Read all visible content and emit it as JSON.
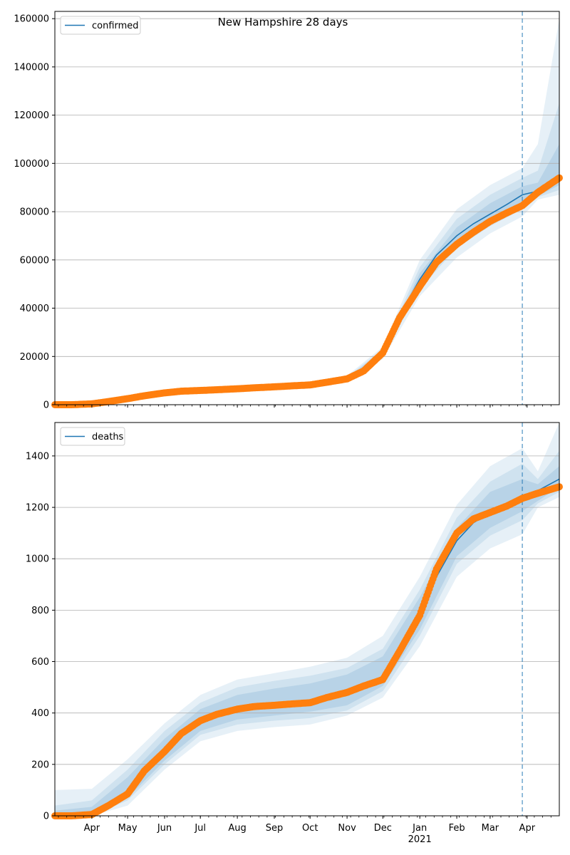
{
  "figure": {
    "title": "New Hampshire 28 days",
    "year_label": "2021"
  },
  "colors": {
    "model": "#1f77b4",
    "observed": "#ff7f0e",
    "band": "#1f77b4",
    "grid": "#b0b0b0",
    "axis": "#000000"
  },
  "chart_data": [
    {
      "type": "line",
      "title": "New Hampshire 28 days",
      "legend": [
        "confirmed"
      ],
      "legend_position": "top-left",
      "grid": "y",
      "x_axis": {
        "type": "date",
        "range": [
          "2020-03-01",
          "2021-04-28"
        ],
        "tick_labels": []
      },
      "ylim": [
        0,
        163000
      ],
      "yticks": [
        0,
        20000,
        40000,
        60000,
        80000,
        100000,
        120000,
        140000,
        160000
      ],
      "ytick_labels": [
        "0",
        "20000",
        "40000",
        "60000",
        "80000",
        "100000",
        "120000",
        "140000",
        "160000"
      ],
      "forecast_start": "2021-03-28",
      "series": [
        {
          "name": "confirmed",
          "kind": "model",
          "x": [
            "2020-03-01",
            "2020-03-15",
            "2020-04-01",
            "2020-04-15",
            "2020-05-01",
            "2020-05-15",
            "2020-06-01",
            "2020-06-15",
            "2020-07-01",
            "2020-07-15",
            "2020-08-01",
            "2020-08-15",
            "2020-09-01",
            "2020-09-15",
            "2020-10-01",
            "2020-10-15",
            "2020-11-01",
            "2020-11-15",
            "2020-12-01",
            "2020-12-15",
            "2021-01-01",
            "2021-01-15",
            "2021-02-01",
            "2021-02-15",
            "2021-03-01",
            "2021-03-15",
            "2021-03-28",
            "2021-04-10",
            "2021-04-28"
          ],
          "y": [
            0,
            0,
            400,
            1300,
            2400,
            3600,
            4800,
            5500,
            5900,
            6200,
            6600,
            7000,
            7400,
            7800,
            8200,
            9200,
            10600,
            14000,
            21000,
            37000,
            52000,
            62000,
            70000,
            75000,
            79000,
            83000,
            87000,
            88500,
            94000
          ]
        },
        {
          "name": "",
          "kind": "observed",
          "x": [
            "2020-03-01",
            "2020-03-15",
            "2020-04-01",
            "2020-04-15",
            "2020-05-01",
            "2020-05-15",
            "2020-06-01",
            "2020-06-15",
            "2020-07-01",
            "2020-07-15",
            "2020-08-01",
            "2020-08-15",
            "2020-09-01",
            "2020-09-15",
            "2020-10-01",
            "2020-10-15",
            "2020-11-01",
            "2020-11-15",
            "2020-12-01",
            "2020-12-15",
            "2021-01-01",
            "2021-01-15",
            "2021-02-01",
            "2021-02-15",
            "2021-03-01",
            "2021-03-15",
            "2021-03-28",
            "2021-04-10",
            "2021-04-28"
          ],
          "y": [
            0,
            0,
            350,
            1300,
            2500,
            3700,
            4900,
            5600,
            5900,
            6200,
            6600,
            7000,
            7400,
            7800,
            8200,
            9300,
            10700,
            14000,
            21500,
            36000,
            49000,
            59000,
            66500,
            71500,
            76000,
            79500,
            82500,
            88000,
            94000
          ]
        }
      ],
      "bands": {
        "x": [
          "2020-03-01",
          "2020-04-01",
          "2020-05-01",
          "2020-06-01",
          "2020-07-01",
          "2020-08-01",
          "2020-09-01",
          "2020-10-01",
          "2020-11-01",
          "2020-12-01",
          "2021-01-01",
          "2021-02-01",
          "2021-03-01",
          "2021-03-28",
          "2021-04-10",
          "2021-04-28"
        ],
        "outer_low": [
          0,
          200,
          1800,
          4100,
          5100,
          5900,
          6600,
          7400,
          9600,
          19000,
          45000,
          61000,
          71000,
          78000,
          85000,
          87000
        ],
        "outer_high": [
          600,
          800,
          3200,
          5600,
          6800,
          7500,
          8300,
          9200,
          12000,
          24000,
          60000,
          81000,
          91000,
          98000,
          108000,
          160000
        ],
        "mid_low": [
          0,
          300,
          2000,
          4400,
          5400,
          6200,
          6900,
          7700,
          10000,
          20000,
          48000,
          65000,
          74000,
          81000,
          86000,
          89000
        ],
        "mid_high": [
          400,
          600,
          2900,
          5300,
          6500,
          7200,
          8000,
          8800,
          11500,
          23000,
          57000,
          77000,
          87000,
          94000,
          97000,
          125000
        ],
        "inner_low": [
          0,
          350,
          2200,
          4600,
          5600,
          6400,
          7100,
          7900,
          10300,
          20500,
          50000,
          67500,
          76000,
          83000,
          86500,
          91000
        ],
        "inner_high": [
          200,
          500,
          2700,
          5100,
          6300,
          7000,
          7800,
          8600,
          11100,
          22200,
          54500,
          73500,
          83500,
          90500,
          92000,
          108000
        ]
      }
    },
    {
      "type": "line",
      "title": "",
      "legend": [
        "deaths"
      ],
      "legend_position": "top-left",
      "grid": "y",
      "x_axis": {
        "type": "date",
        "range": [
          "2020-03-01",
          "2021-04-28"
        ],
        "tick_labels": [
          "Apr",
          "May",
          "Jun",
          "Jul",
          "Aug",
          "Sep",
          "Oct",
          "Nov",
          "Dec",
          "Jan",
          "Feb",
          "Mar",
          "Apr"
        ],
        "tick_dates": [
          "2020-04-01",
          "2020-05-01",
          "2020-06-01",
          "2020-07-01",
          "2020-08-01",
          "2020-09-01",
          "2020-10-01",
          "2020-11-01",
          "2020-12-01",
          "2021-01-01",
          "2021-02-01",
          "2021-03-01",
          "2021-04-01"
        ]
      },
      "ylim": [
        0,
        1530
      ],
      "yticks": [
        0,
        200,
        400,
        600,
        800,
        1000,
        1200,
        1400
      ],
      "ytick_labels": [
        "0",
        "200",
        "400",
        "600",
        "800",
        "1000",
        "1200",
        "1400"
      ],
      "forecast_start": "2021-03-28",
      "series": [
        {
          "name": "deaths",
          "kind": "model",
          "x": [
            "2020-03-01",
            "2020-03-15",
            "2020-04-01",
            "2020-04-15",
            "2020-05-01",
            "2020-05-15",
            "2020-06-01",
            "2020-06-15",
            "2020-07-01",
            "2020-07-15",
            "2020-08-01",
            "2020-08-15",
            "2020-09-01",
            "2020-09-15",
            "2020-10-01",
            "2020-10-15",
            "2020-11-01",
            "2020-11-15",
            "2020-12-01",
            "2020-12-15",
            "2021-01-01",
            "2021-01-15",
            "2021-02-01",
            "2021-02-15",
            "2021-03-01",
            "2021-03-15",
            "2021-03-28",
            "2021-04-10",
            "2021-04-28"
          ],
          "y": [
            0,
            0,
            10,
            40,
            90,
            180,
            250,
            320,
            370,
            395,
            415,
            425,
            430,
            435,
            440,
            460,
            480,
            500,
            530,
            640,
            770,
            930,
            1070,
            1140,
            1180,
            1210,
            1240,
            1265,
            1310
          ]
        },
        {
          "name": "",
          "kind": "observed",
          "x": [
            "2020-03-01",
            "2020-03-15",
            "2020-04-01",
            "2020-04-15",
            "2020-05-01",
            "2020-05-15",
            "2020-06-01",
            "2020-06-15",
            "2020-07-01",
            "2020-07-15",
            "2020-08-01",
            "2020-08-15",
            "2020-09-01",
            "2020-09-15",
            "2020-10-01",
            "2020-10-15",
            "2020-11-01",
            "2020-11-15",
            "2020-12-01",
            "2020-12-15",
            "2021-01-01",
            "2021-01-15",
            "2021-02-01",
            "2021-02-15",
            "2021-03-01",
            "2021-03-15",
            "2021-03-28",
            "2021-04-10",
            "2021-04-28"
          ],
          "y": [
            0,
            0,
            5,
            40,
            85,
            175,
            250,
            320,
            370,
            395,
            415,
            425,
            430,
            435,
            440,
            460,
            480,
            505,
            530,
            640,
            780,
            960,
            1100,
            1155,
            1180,
            1205,
            1235,
            1255,
            1280
          ]
        }
      ],
      "bands": {
        "x": [
          "2020-03-01",
          "2020-04-01",
          "2020-05-01",
          "2020-06-01",
          "2020-07-01",
          "2020-08-01",
          "2020-09-01",
          "2020-10-01",
          "2020-11-01",
          "2020-12-01",
          "2021-01-01",
          "2021-02-01",
          "2021-03-01",
          "2021-03-28",
          "2021-04-10",
          "2021-04-28"
        ],
        "outer_low": [
          0,
          0,
          40,
          180,
          290,
          330,
          345,
          355,
          390,
          460,
          660,
          930,
          1040,
          1095,
          1200,
          1240
        ],
        "outer_high": [
          100,
          105,
          220,
          360,
          470,
          530,
          555,
          580,
          615,
          700,
          930,
          1210,
          1360,
          1430,
          1340,
          1530
        ],
        "mid_low": [
          0,
          0,
          60,
          200,
          315,
          355,
          370,
          380,
          410,
          485,
          700,
          980,
          1090,
          1150,
          1215,
          1260
        ],
        "mid_high": [
          40,
          60,
          180,
          330,
          440,
          500,
          525,
          545,
          575,
          650,
          880,
          1160,
          1300,
          1370,
          1310,
          1420
        ],
        "inner_low": [
          0,
          0,
          70,
          215,
          330,
          375,
          390,
          405,
          430,
          505,
          725,
          1010,
          1120,
          1185,
          1225,
          1280
        ],
        "inner_high": [
          20,
          35,
          150,
          300,
          415,
          470,
          495,
          515,
          550,
          620,
          850,
          1120,
          1260,
          1310,
          1290,
          1360
        ]
      }
    }
  ]
}
